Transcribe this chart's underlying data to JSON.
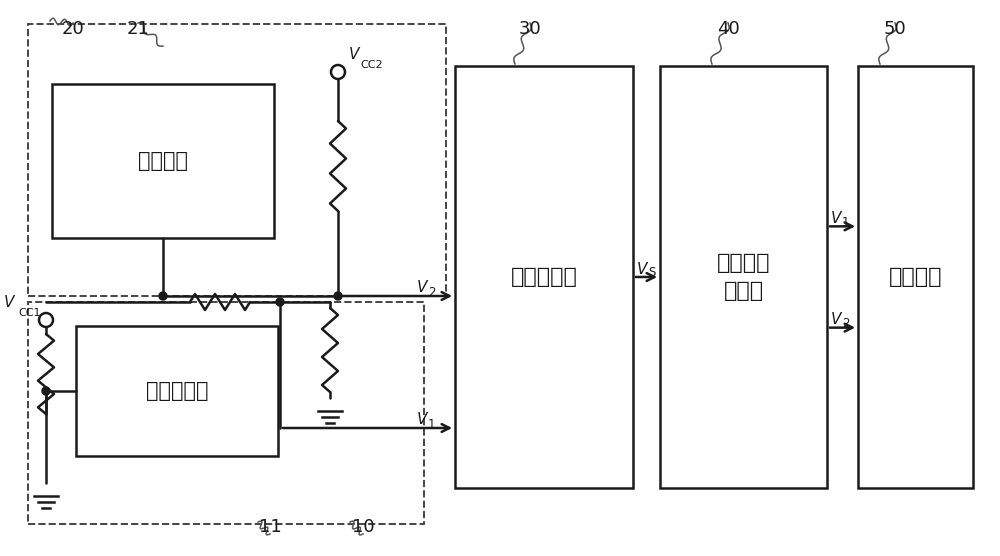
{
  "bg_color": "#ffffff",
  "line_color": "#1a1a1a",
  "dash_color": "#444444",
  "text_fan": "风扇装置",
  "text_temp": "温度检测器",
  "text_logic": "逻辑运算器",
  "text_inv1": "反向逻辑",
  "text_inv2": "运算器",
  "text_proc": "处理单元",
  "label_20": "20",
  "label_21": "21",
  "label_30": "30",
  "label_40": "40",
  "label_50": "50",
  "label_10": "10",
  "label_11": "11",
  "figsize": [
    10.0,
    5.56
  ],
  "dpi": 100
}
